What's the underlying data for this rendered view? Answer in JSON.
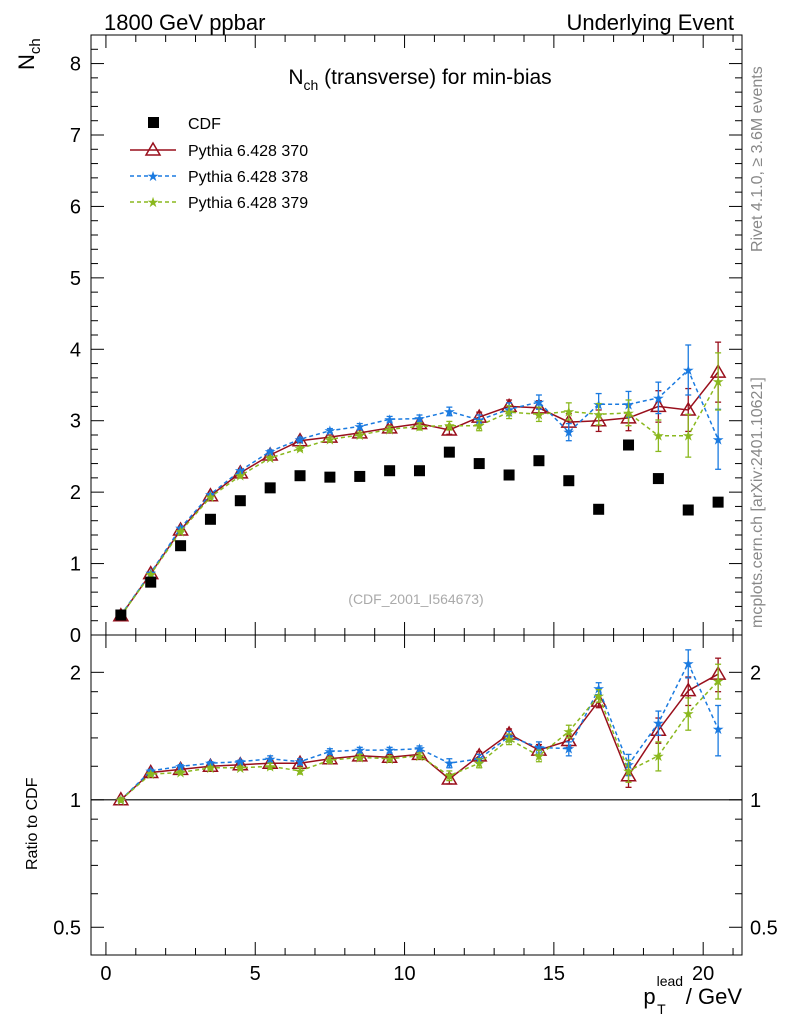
{
  "header": {
    "left": "1800 GeV ppbar",
    "right": "Underlying Event"
  },
  "side_labels": {
    "top": "Rivet 4.1.0, ≥ 3.6M events",
    "bottom": "mcplots.cern.ch [arXiv:2401.10621]"
  },
  "colors": {
    "cdf": "#000000",
    "p370": "#990f1c",
    "p378": "#1a7ae0",
    "p379": "#8ab81e"
  },
  "chart_data": [
    {
      "type": "scatter",
      "title": "N_ch (transverse) for min-bias",
      "title_main": "N",
      "title_sub": "ch",
      "title_rest": " (transverse) for min-bias",
      "ylabel_main": "N",
      "ylabel_sub": "ch",
      "watermark": "(CDF_2001_I564673)",
      "xlim": [
        -0.5,
        21.3
      ],
      "ylim": [
        0,
        8.4
      ],
      "yticks": [
        0,
        1,
        2,
        3,
        4,
        5,
        6,
        7,
        8
      ],
      "ytick_labels": [
        "0",
        "1",
        "2",
        "3",
        "4",
        "5",
        "6",
        "7",
        "8"
      ],
      "legend": [
        "CDF",
        "Pythia 6.428 370",
        "Pythia 6.428 378",
        "Pythia 6.428 379"
      ],
      "x": [
        0.5,
        1.5,
        2.5,
        3.5,
        4.5,
        5.5,
        6.5,
        7.5,
        8.5,
        9.5,
        10.5,
        11.5,
        12.5,
        13.5,
        14.5,
        15.5,
        16.5,
        17.5,
        18.5,
        19.5,
        20.5
      ],
      "series": [
        {
          "name": "CDF",
          "values": [
            0.28,
            0.74,
            1.25,
            1.62,
            1.88,
            2.06,
            2.23,
            2.21,
            2.22,
            2.3,
            2.3,
            2.56,
            2.4,
            2.24,
            2.44,
            2.16,
            1.76,
            2.66,
            2.19,
            1.75,
            1.86
          ]
        },
        {
          "name": "Pythia 6.428 370",
          "values": [
            0.27,
            0.86,
            1.47,
            1.95,
            2.27,
            2.52,
            2.72,
            2.77,
            2.83,
            2.9,
            2.96,
            2.87,
            3.05,
            3.2,
            3.18,
            2.98,
            3.0,
            3.04,
            3.2,
            3.15,
            3.68
          ],
          "errors": [
            0.01,
            0.01,
            0.01,
            0.01,
            0.01,
            0.02,
            0.03,
            0.03,
            0.04,
            0.04,
            0.05,
            0.06,
            0.07,
            0.09,
            0.1,
            0.12,
            0.15,
            0.18,
            0.22,
            0.3,
            0.42
          ]
        },
        {
          "name": "Pythia 6.428 378",
          "values": [
            0.28,
            0.87,
            1.5,
            1.97,
            2.3,
            2.57,
            2.74,
            2.86,
            2.92,
            3.02,
            3.03,
            3.13,
            3.01,
            3.16,
            3.26,
            2.84,
            3.23,
            3.23,
            3.32,
            3.71,
            2.74
          ],
          "errors": [
            0.01,
            0.01,
            0.01,
            0.01,
            0.01,
            0.02,
            0.03,
            0.03,
            0.04,
            0.04,
            0.05,
            0.06,
            0.07,
            0.09,
            0.1,
            0.12,
            0.15,
            0.18,
            0.22,
            0.35,
            0.42
          ]
        },
        {
          "name": "Pythia 6.428 379",
          "values": [
            0.27,
            0.85,
            1.45,
            1.93,
            2.23,
            2.48,
            2.61,
            2.74,
            2.8,
            2.88,
            2.92,
            2.93,
            2.93,
            3.12,
            3.09,
            3.13,
            3.09,
            3.11,
            2.79,
            2.79,
            3.55
          ],
          "errors": [
            0.01,
            0.01,
            0.01,
            0.01,
            0.01,
            0.02,
            0.03,
            0.03,
            0.04,
            0.04,
            0.05,
            0.06,
            0.07,
            0.09,
            0.1,
            0.12,
            0.15,
            0.18,
            0.22,
            0.3,
            0.4
          ]
        }
      ]
    },
    {
      "type": "scatter",
      "ylabel": "Ratio to CDF",
      "xlabel_main": "p",
      "xlabel_sub": "T",
      "xlabel_sup": "lead",
      "xlabel_rest": " / GeV",
      "xlim": [
        -0.5,
        21.3
      ],
      "ylim": [
        0.43,
        2.45
      ],
      "yticks": [
        0.5,
        1,
        2
      ],
      "ytick_labels": [
        "0.5",
        "1",
        "2"
      ],
      "xticks": [
        0,
        5,
        10,
        15,
        20
      ],
      "xtick_labels": [
        "0",
        "5",
        "10",
        "15",
        "20"
      ],
      "reference_line": 1,
      "x": [
        0.5,
        1.5,
        2.5,
        3.5,
        4.5,
        5.5,
        6.5,
        7.5,
        8.5,
        9.5,
        10.5,
        11.5,
        12.5,
        13.5,
        14.5,
        15.5,
        16.5,
        17.5,
        18.5,
        19.5,
        20.5
      ],
      "series": [
        {
          "name": "Pythia 6.428 370",
          "values": [
            1.0,
            1.16,
            1.18,
            1.2,
            1.21,
            1.22,
            1.22,
            1.25,
            1.27,
            1.26,
            1.28,
            1.12,
            1.27,
            1.43,
            1.31,
            1.38,
            1.71,
            1.14,
            1.46,
            1.81,
            1.98
          ],
          "errors": [
            0.01,
            0.01,
            0.01,
            0.01,
            0.01,
            0.02,
            0.02,
            0.02,
            0.02,
            0.02,
            0.02,
            0.03,
            0.03,
            0.04,
            0.04,
            0.05,
            0.06,
            0.07,
            0.1,
            0.14,
            0.18
          ]
        },
        {
          "name": "Pythia 6.428 378",
          "values": [
            1.0,
            1.17,
            1.2,
            1.22,
            1.23,
            1.25,
            1.23,
            1.3,
            1.31,
            1.31,
            1.32,
            1.22,
            1.25,
            1.41,
            1.33,
            1.32,
            1.83,
            1.21,
            1.52,
            2.1,
            1.47
          ],
          "errors": [
            0.01,
            0.01,
            0.01,
            0.01,
            0.01,
            0.02,
            0.02,
            0.02,
            0.02,
            0.02,
            0.02,
            0.03,
            0.03,
            0.04,
            0.04,
            0.05,
            0.06,
            0.07,
            0.1,
            0.16,
            0.2
          ]
        },
        {
          "name": "Pythia 6.428 379",
          "values": [
            1.0,
            1.15,
            1.16,
            1.19,
            1.19,
            1.2,
            1.17,
            1.24,
            1.26,
            1.25,
            1.27,
            1.14,
            1.22,
            1.39,
            1.27,
            1.45,
            1.76,
            1.17,
            1.27,
            1.6,
            1.91
          ],
          "errors": [
            0.01,
            0.01,
            0.01,
            0.01,
            0.01,
            0.02,
            0.02,
            0.02,
            0.02,
            0.02,
            0.02,
            0.03,
            0.03,
            0.04,
            0.04,
            0.05,
            0.06,
            0.07,
            0.1,
            0.14,
            0.18
          ]
        }
      ]
    }
  ]
}
